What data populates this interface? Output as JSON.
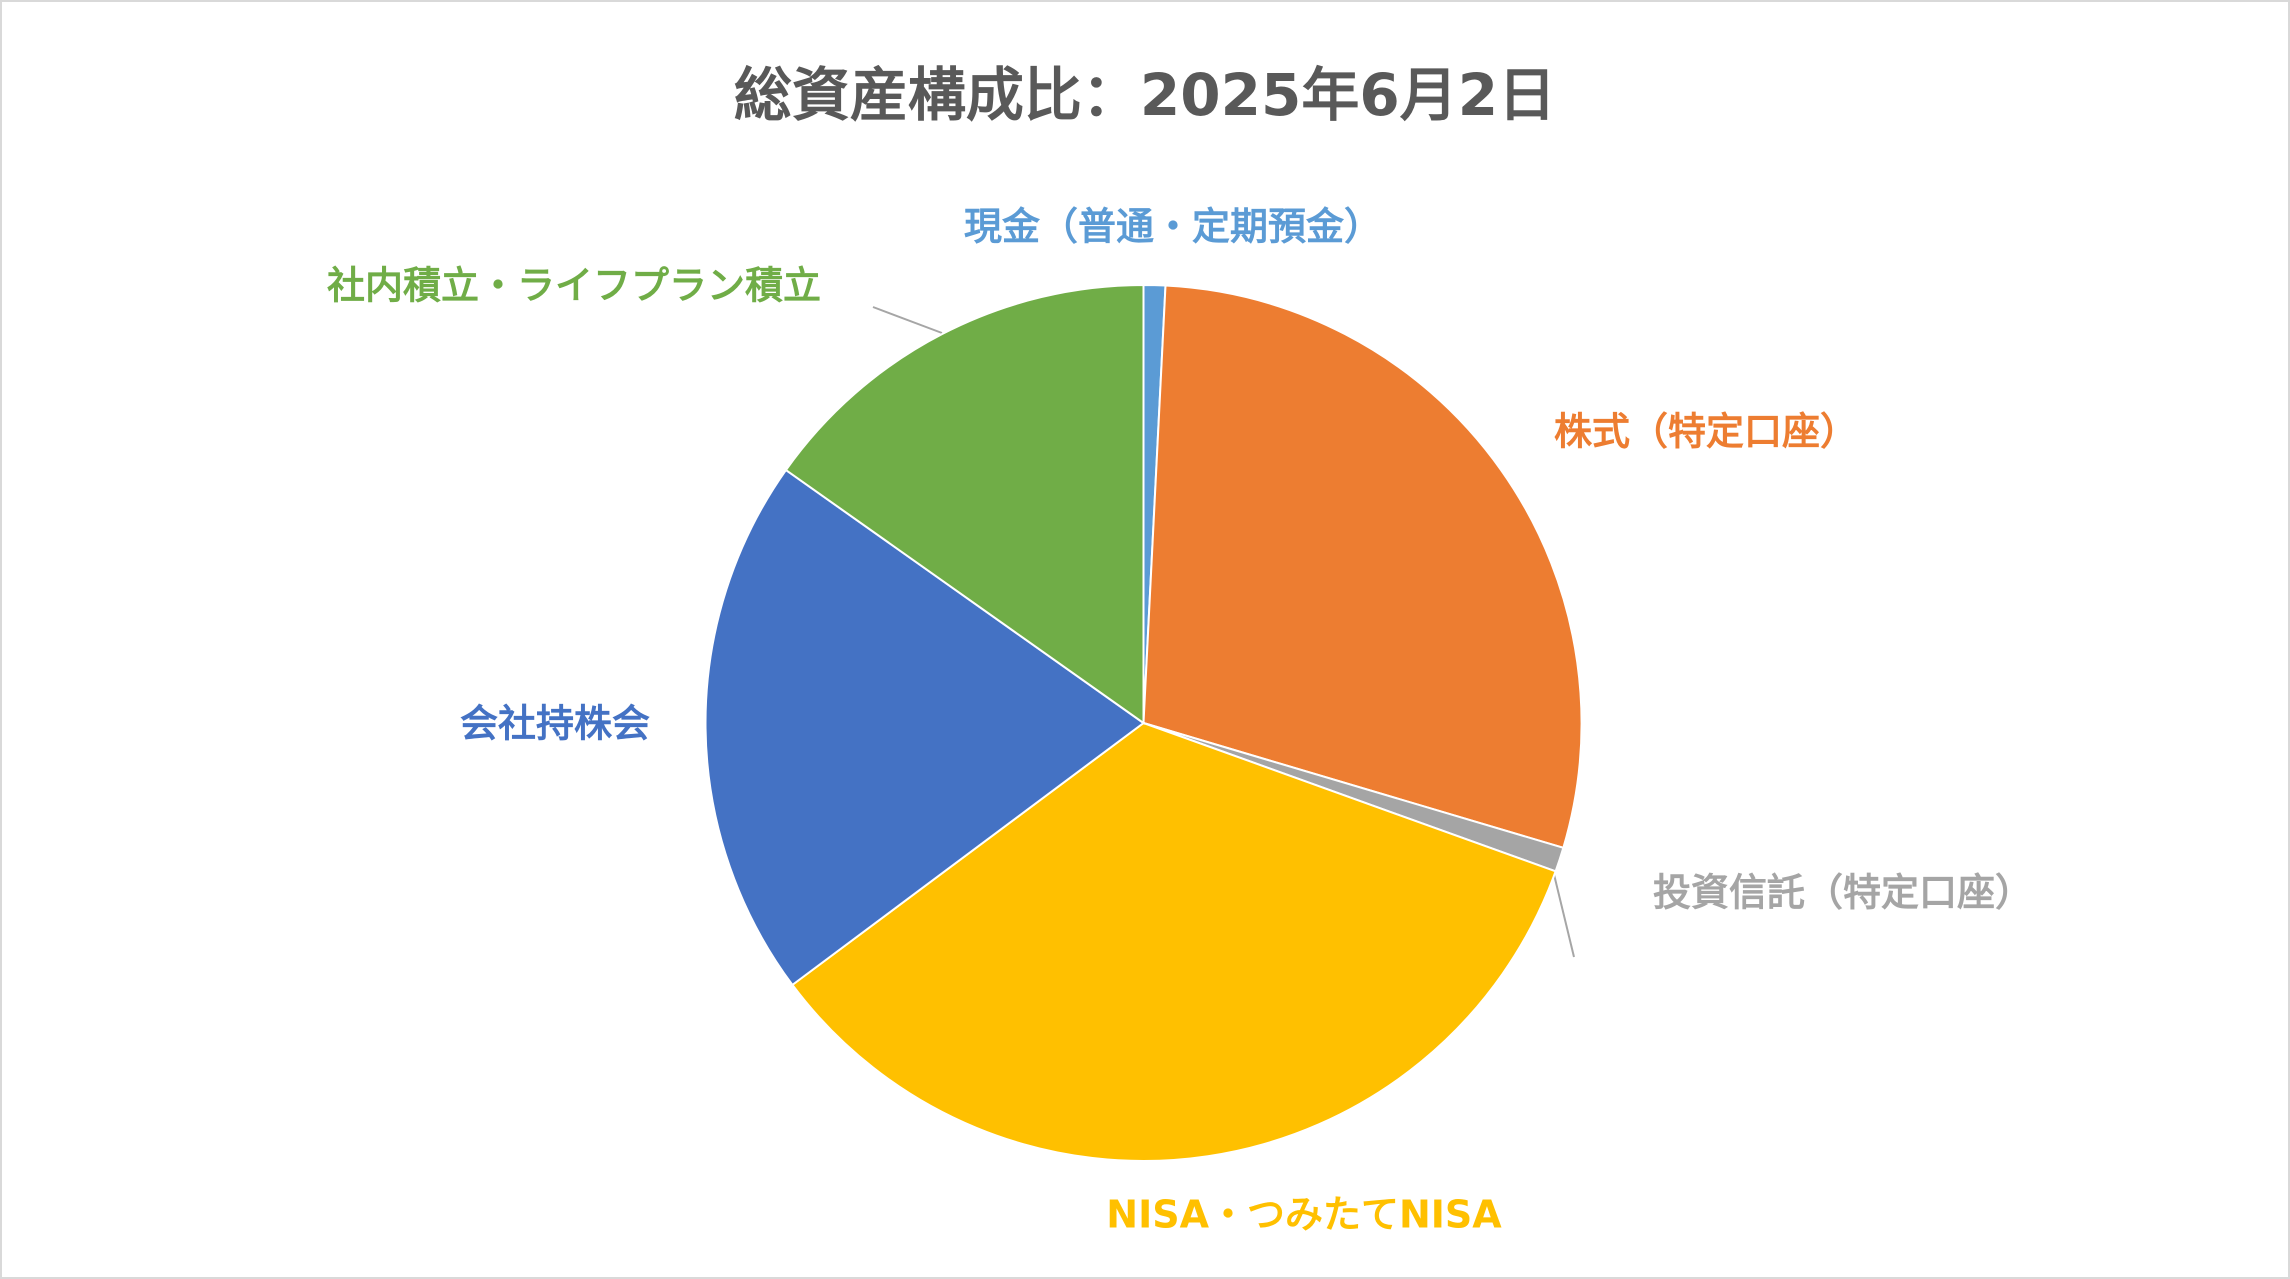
{
  "chart_data": {
    "type": "pie",
    "title": "総資産構成比：2025年6月2日",
    "categories": [
      "現金（普通・定期預金）",
      "株式（特定口座）",
      "投資信託（特定口座）",
      "NISA・つみたてNISA",
      "会社持株会",
      "社内積立・ライフプラン積立"
    ],
    "values": [
      0.8,
      28.8,
      0.9,
      34.3,
      20.0,
      15.2
    ],
    "colors": [
      "#5b9bd5",
      "#ed7d31",
      "#a5a5a5",
      "#ffc000",
      "#4472c4",
      "#70ad47"
    ]
  }
}
